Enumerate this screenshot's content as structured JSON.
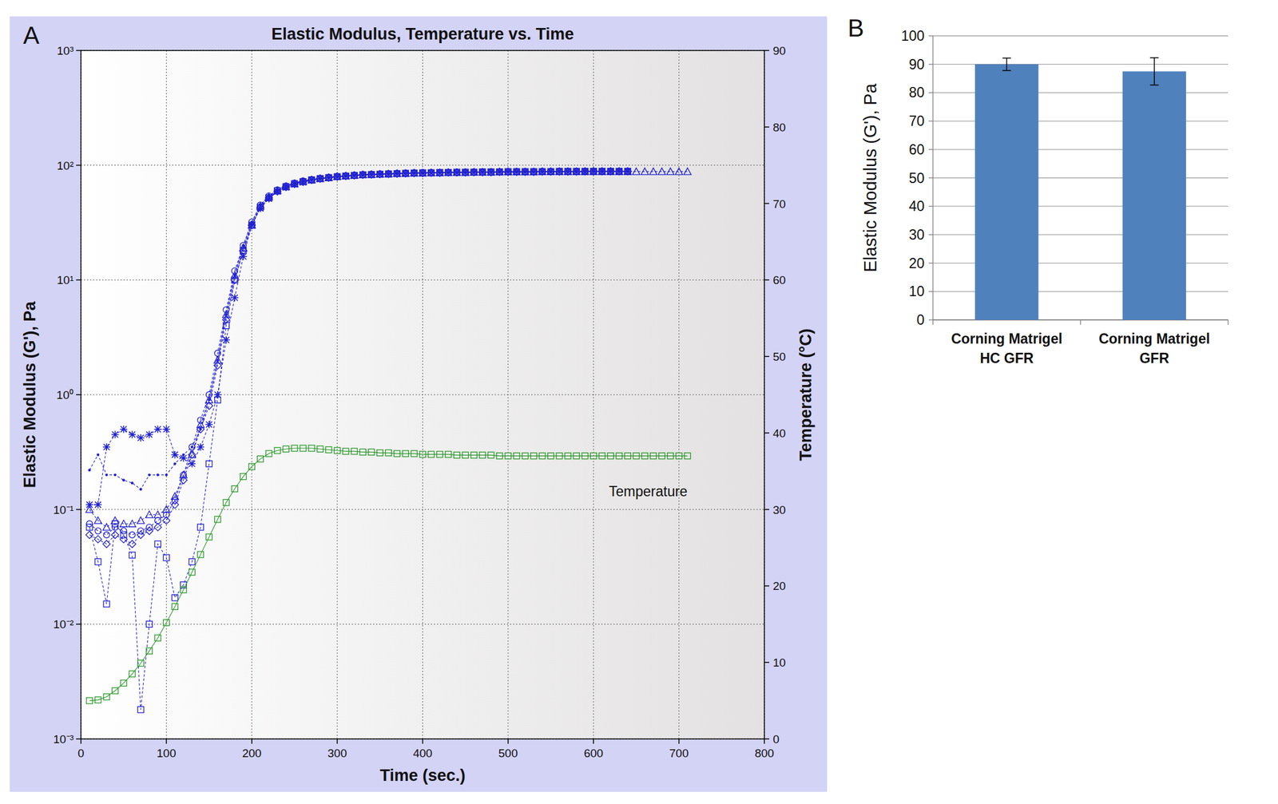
{
  "chart_data": [
    {
      "type": "line",
      "label": "A",
      "title": "Elastic Modulus, Temperature vs. Time",
      "x_label": "Time (sec.)",
      "y_label": "Elastic Modulus (G'), Pa",
      "y2_label": "Temperature (°C)",
      "log": "y",
      "grid": true,
      "xlim": [
        0,
        800
      ],
      "xticks": [
        0,
        100,
        200,
        300,
        400,
        500,
        600,
        700,
        800
      ],
      "ylim": [
        0.001,
        1000
      ],
      "yticks": [
        {
          "value": 0.001,
          "label": "10⁻³"
        },
        {
          "value": 0.01,
          "label": "10⁻²"
        },
        {
          "value": 0.1,
          "label": "10⁻¹"
        },
        {
          "value": 1,
          "label": "10⁰"
        },
        {
          "value": 10,
          "label": "10¹"
        },
        {
          "value": 100,
          "label": "10²"
        },
        {
          "value": 1000,
          "label": "10³"
        }
      ],
      "y2lim": [
        0,
        90
      ],
      "y2ticks": [
        0,
        10,
        20,
        30,
        40,
        50,
        60,
        70,
        80,
        90
      ],
      "x": [
        10,
        20,
        30,
        40,
        50,
        60,
        70,
        80,
        90,
        100,
        110,
        120,
        130,
        140,
        150,
        160,
        170,
        180,
        190,
        200,
        210,
        220,
        230,
        240,
        250,
        260,
        270,
        280,
        290,
        300,
        310,
        320,
        330,
        340,
        350,
        360,
        370,
        380,
        390,
        400,
        410,
        420,
        430,
        440,
        450,
        460,
        470,
        480,
        490,
        500,
        510,
        520,
        530,
        540,
        550,
        560,
        570,
        580,
        590,
        600,
        610,
        620,
        630,
        640,
        650,
        660,
        670,
        680,
        690,
        700,
        710
      ],
      "series": [
        {
          "color": "#2020d0",
          "marker": "circle",
          "line_style": "dashed",
          "values": [
            0.075,
            0.065,
            0.06,
            0.07,
            0.065,
            0.06,
            0.065,
            0.07,
            0.08,
            0.09,
            0.12,
            0.2,
            0.35,
            0.6,
            1.0,
            2.3,
            5.5,
            12,
            20,
            32,
            45,
            54,
            61,
            66,
            70,
            73,
            75,
            77,
            78.5,
            80,
            81,
            82,
            83,
            83.5,
            84,
            84.5,
            85,
            85.5,
            86,
            86,
            86.5,
            86.5,
            87,
            87,
            87,
            87.5,
            87.5,
            87.5,
            88,
            88,
            88,
            88,
            88,
            88.5,
            88.5,
            88.5,
            88.5,
            88.5,
            89,
            89,
            89,
            89,
            89,
            89,
            null,
            null,
            null,
            null,
            null,
            null,
            null
          ]
        },
        {
          "color": "#2020d0",
          "marker": "triangle",
          "line_style": "dashed",
          "values": [
            0.1,
            0.08,
            0.07,
            0.08,
            0.075,
            0.075,
            0.08,
            0.09,
            0.09,
            0.1,
            0.13,
            0.2,
            0.3,
            0.55,
            0.9,
            2,
            5,
            11,
            19,
            30,
            44,
            53,
            60,
            65,
            69,
            72,
            74.5,
            76.5,
            78,
            79.5,
            80.5,
            81.5,
            82.5,
            83,
            83.5,
            84,
            84.5,
            85,
            85.5,
            85.5,
            86,
            86,
            86.5,
            86.5,
            86.5,
            87,
            87,
            87,
            87.5,
            87.5,
            87.5,
            87.5,
            87.5,
            88,
            88,
            88,
            88,
            88,
            88,
            88,
            88,
            88,
            88,
            88,
            88,
            88,
            88,
            88,
            88,
            88,
            88
          ]
        },
        {
          "color": "#2020d0",
          "marker": "diamond",
          "line_style": "dashed",
          "values": [
            0.06,
            0.055,
            0.05,
            0.06,
            0.055,
            0.05,
            0.06,
            0.065,
            0.07,
            0.08,
            0.11,
            0.18,
            0.3,
            0.5,
            0.8,
            1.8,
            4.5,
            10,
            18,
            30,
            43,
            52,
            59,
            65,
            69,
            72,
            74.5,
            76.5,
            78,
            79.5,
            80.5,
            81.5,
            82.5,
            83,
            83.5,
            84,
            84.5,
            85,
            85.5,
            85.5,
            86,
            86,
            86.5,
            86.5,
            86.5,
            87,
            87,
            87,
            87.5,
            87.5,
            87.5,
            87.5,
            87.5,
            88,
            88,
            88,
            88,
            88,
            88.5,
            88.5,
            88.5,
            88.5,
            88.5,
            88.5,
            null,
            null,
            null,
            null,
            null,
            null,
            null
          ]
        },
        {
          "color": "#2020d0",
          "marker": "square",
          "line_style": "dashed",
          "values": [
            0.07,
            0.035,
            0.015,
            0.075,
            0.06,
            0.04,
            0.0018,
            0.01,
            0.05,
            0.038,
            0.017,
            0.022,
            0.035,
            0.07,
            0.25,
            0.9,
            4,
            10,
            18,
            30,
            43,
            52,
            60,
            65,
            69,
            72,
            74.5,
            76.5,
            78,
            79.5,
            80.5,
            81.5,
            82.5,
            83,
            83.5,
            84,
            84.5,
            85,
            85.5,
            86,
            86,
            86.5,
            86.5,
            87,
            87,
            87,
            87.5,
            87.5,
            87.5,
            88,
            88,
            88,
            88,
            88,
            88,
            88.5,
            88.5,
            88.5,
            88.5,
            88.5,
            88.5,
            88.5,
            88.5,
            88.5,
            null,
            null,
            null,
            null,
            null,
            null,
            null
          ]
        },
        {
          "color": "#2020d0",
          "marker": "star",
          "line_style": "dashed",
          "values": [
            0.11,
            0.11,
            0.35,
            0.45,
            0.5,
            0.45,
            0.42,
            0.45,
            0.5,
            0.5,
            0.3,
            0.28,
            0.25,
            0.35,
            0.55,
            1.0,
            3,
            7,
            16,
            30,
            42,
            51,
            59,
            64,
            68,
            71,
            74,
            76,
            77.5,
            79,
            80,
            81,
            82,
            82.5,
            83,
            83.5,
            84,
            84.5,
            85,
            85,
            85.5,
            85.5,
            86,
            86,
            86,
            86.5,
            86.5,
            86.5,
            87,
            87,
            87,
            87,
            87,
            87.5,
            87.5,
            87.5,
            87.5,
            87.5,
            87.5,
            88,
            88,
            88,
            88,
            88,
            null,
            null,
            null,
            null,
            null,
            null,
            null
          ]
        },
        {
          "color": "#2020d0",
          "marker": "dot",
          "line_style": "dashed",
          "values": [
            0.22,
            0.3,
            0.2,
            0.2,
            0.18,
            0.17,
            0.15,
            0.2,
            0.2,
            0.2,
            0.25,
            0.3,
            0.35,
            0.5,
            0.9,
            2,
            5,
            11,
            20,
            32,
            45,
            54,
            61,
            66,
            70,
            73,
            75,
            77,
            78.5,
            80,
            81,
            82,
            83,
            83.5,
            84,
            84.5,
            85,
            85.5,
            86,
            86,
            86.5,
            86.5,
            87,
            87,
            87,
            87.5,
            87.5,
            87.5,
            88,
            88,
            88,
            88,
            88,
            88.5,
            88.5,
            88.5,
            88.5,
            88.5,
            89,
            89,
            89,
            89,
            89,
            89,
            null,
            null,
            null,
            null,
            null,
            null,
            null
          ]
        },
        {
          "name": "Temperature",
          "axis": "y2",
          "color": "#2a9a2a",
          "marker": "square",
          "line_style": "solid",
          "values": [
            5,
            5.1,
            5.5,
            6.3,
            7.3,
            8.5,
            9.9,
            11.5,
            13.2,
            15.2,
            17.3,
            19.5,
            21.8,
            24.1,
            26.4,
            28.7,
            30.9,
            32.7,
            34.3,
            35.6,
            36.6,
            37.3,
            37.7,
            37.9,
            38.0,
            38.0,
            38.0,
            37.9,
            37.8,
            37.7,
            37.6,
            37.6,
            37.5,
            37.5,
            37.4,
            37.4,
            37.3,
            37.3,
            37.3,
            37.2,
            37.2,
            37.2,
            37.2,
            37.1,
            37.1,
            37.1,
            37.1,
            37.1,
            37.0,
            37.0,
            37.0,
            37.0,
            37.0,
            37.0,
            37.0,
            37.0,
            37.0,
            37.0,
            37.0,
            37.0,
            37.0,
            37.0,
            37.0,
            37.0,
            37.0,
            37.0,
            37.0,
            37.0,
            37.0,
            37.0,
            37.0
          ]
        }
      ]
    },
    {
      "type": "bar",
      "label": "B",
      "y_label": "Elastic Modulus  (G'), Pa",
      "grid": true,
      "categories": [
        "Corning Matrigel HC GFR",
        "Corning Matrigel GFR"
      ],
      "values": [
        90,
        87.5
      ],
      "errors": [
        2.2,
        4.8
      ],
      "color": "#4f81bd",
      "ylim": [
        0,
        100
      ],
      "yticks": [
        0,
        10,
        20,
        30,
        40,
        50,
        60,
        70,
        80,
        90,
        100
      ]
    }
  ]
}
